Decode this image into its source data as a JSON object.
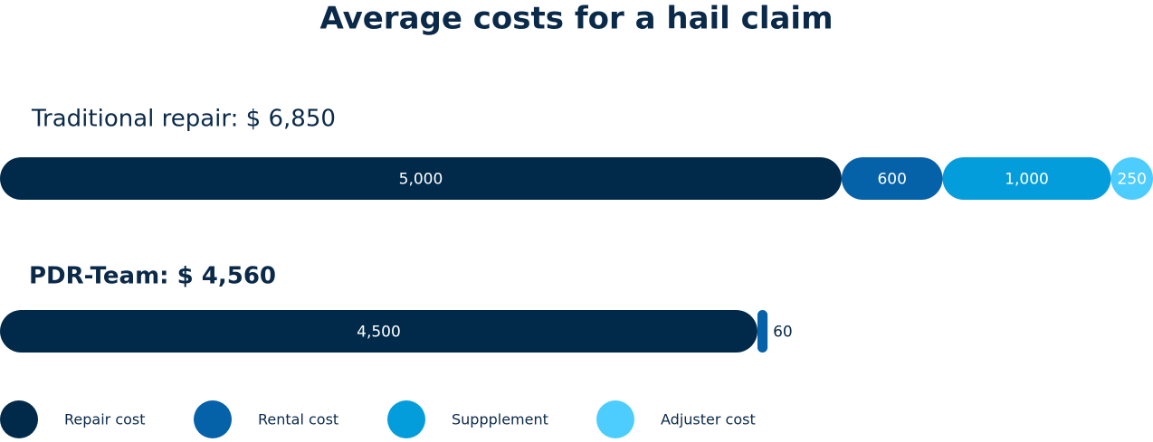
{
  "chart_data": {
    "type": "bar",
    "orientation": "horizontal",
    "stacked": true,
    "title": "Average costs for a hail claim",
    "categories": [
      "Traditional repair: $ 6,850",
      "PDR-Team: $ 4,560"
    ],
    "series": [
      {
        "name": "Repair cost",
        "color": "#012a4a",
        "values": [
          5000,
          4500
        ],
        "value_labels": [
          "5,000",
          "4,500"
        ]
      },
      {
        "name": "Rental cost",
        "color": "#0561a8",
        "values": [
          600,
          60
        ],
        "value_labels": [
          "600",
          "60"
        ]
      },
      {
        "name": "Suppplement",
        "color": "#049ddb",
        "values": [
          1000,
          null
        ],
        "value_labels": [
          "1,000",
          null
        ]
      },
      {
        "name": "Adjuster cost",
        "color": "#4dcdfd",
        "values": [
          250,
          null
        ],
        "value_labels": [
          "250",
          null
        ]
      }
    ],
    "legend": "bottom"
  }
}
